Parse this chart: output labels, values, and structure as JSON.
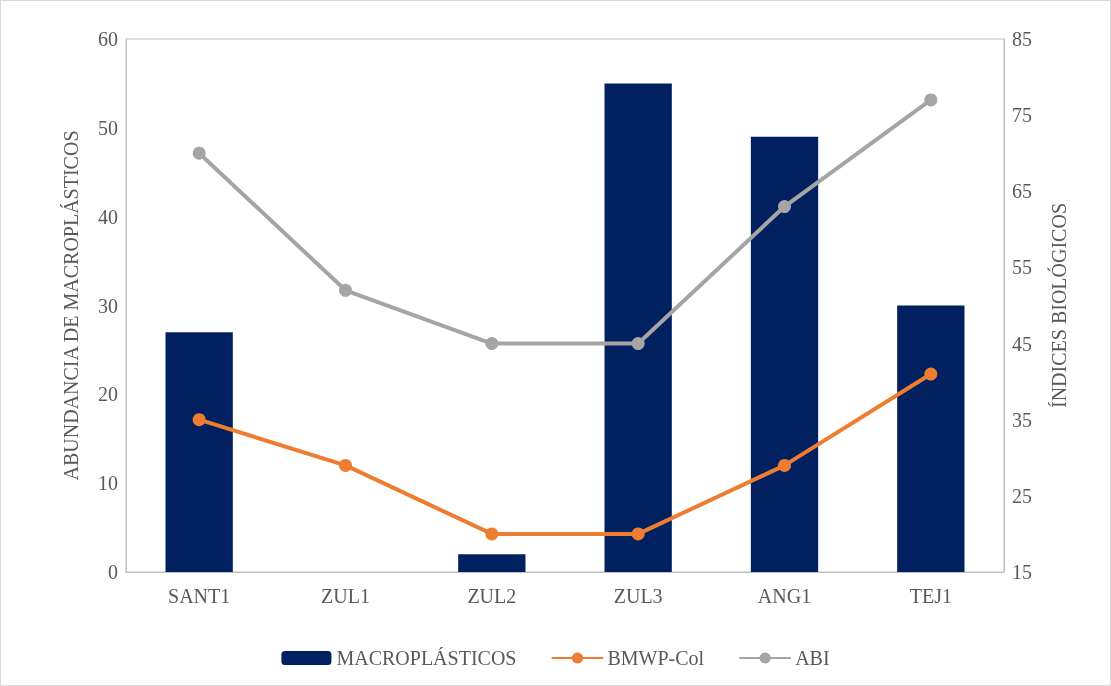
{
  "chart_data": {
    "type": "bar",
    "categories": [
      "SANT1",
      "ZUL1",
      "ZUL2",
      "ZUL3",
      "ANG1",
      "TEJ1"
    ],
    "ylabel": "ABUNDANCIA DE MACROPLÁSTICOS",
    "y2label": "ÍNDICES BIOLÓGICOS",
    "ylim": [
      0,
      60
    ],
    "yticks": [
      0,
      10,
      20,
      30,
      40,
      50,
      60
    ],
    "y2lim": [
      15,
      85
    ],
    "y2ticks": [
      15,
      25,
      35,
      45,
      55,
      65,
      75,
      85
    ],
    "series": [
      {
        "name": "MACROPLÁSTICOS",
        "type": "bar",
        "color": "#002060",
        "values": [
          27,
          0,
          2,
          55,
          49,
          30
        ]
      },
      {
        "name": "BMWP-Col",
        "type": "line",
        "axis": "y2",
        "color": "#ed7d31",
        "values": [
          35,
          29,
          20,
          20,
          29,
          41
        ]
      },
      {
        "name": "ABI",
        "type": "line",
        "axis": "y2",
        "color": "#a5a5a5",
        "values": [
          70,
          52,
          45,
          45,
          63,
          77
        ]
      }
    ],
    "marker": "circle",
    "grid": false,
    "legend": "bottom"
  }
}
